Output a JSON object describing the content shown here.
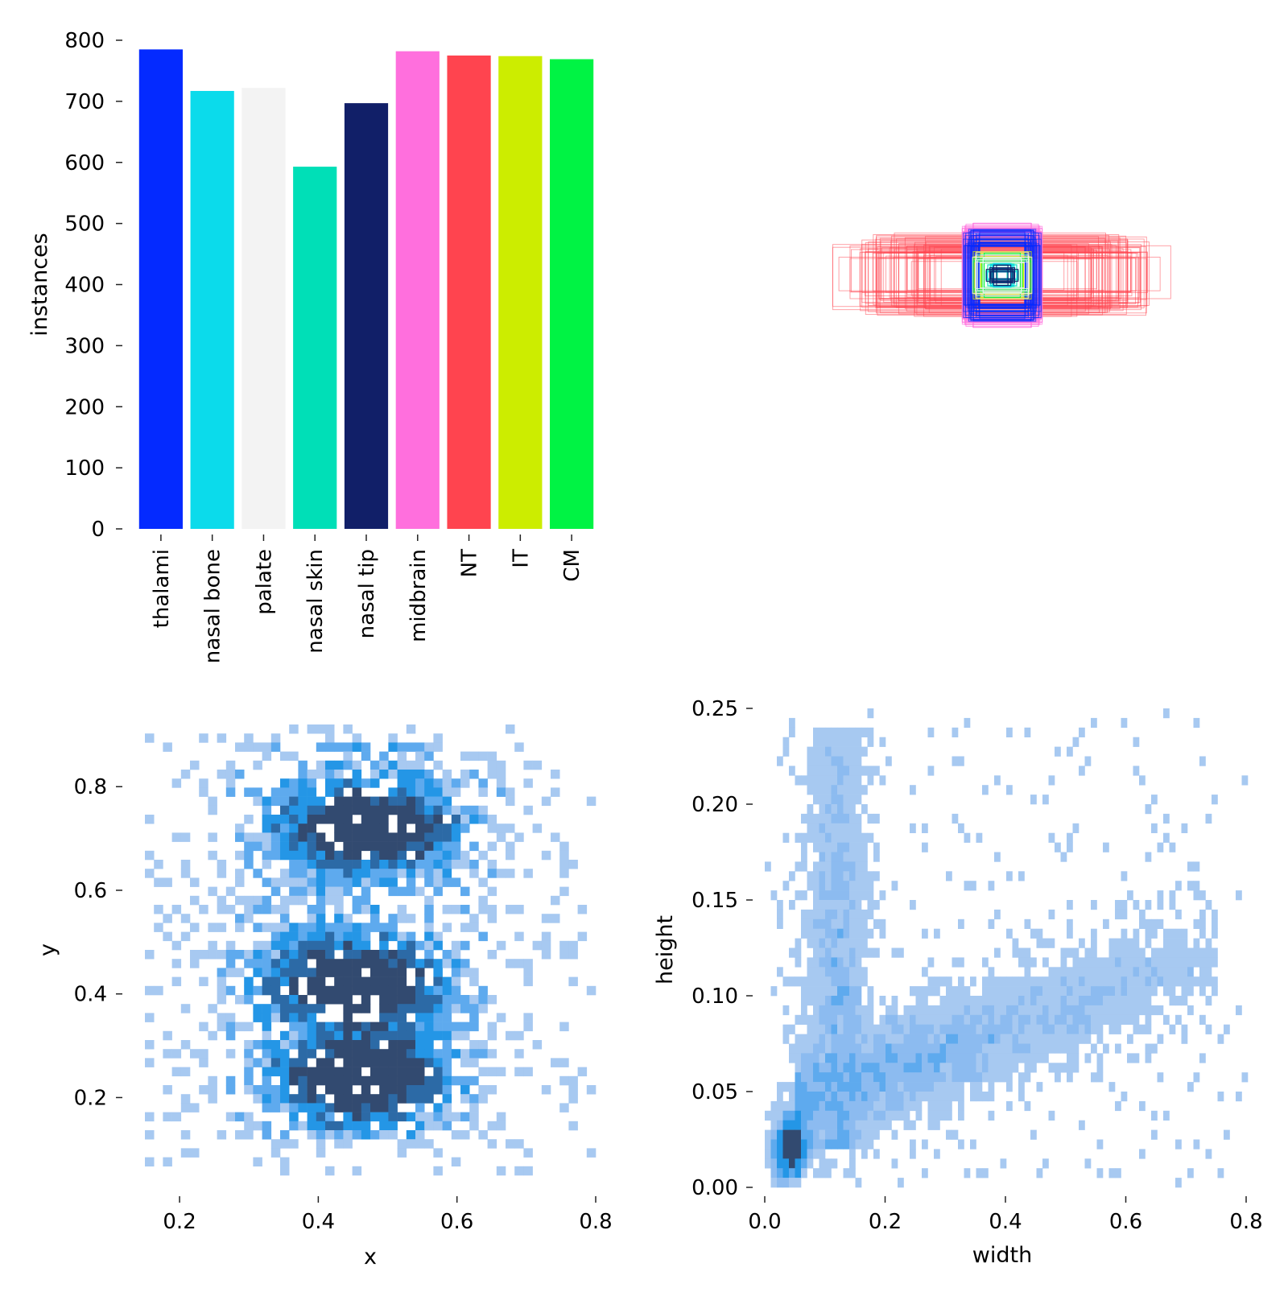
{
  "chart_data": [
    {
      "type": "bar",
      "panel": "top-left",
      "ylabel": "instances",
      "xlabel": "",
      "ylim": [
        0,
        800
      ],
      "yticks": [
        0,
        100,
        200,
        300,
        400,
        500,
        600,
        700,
        800
      ],
      "ytick_labels": [
        "0",
        "100",
        "200",
        "300",
        "400",
        "500",
        "600",
        "700",
        "800"
      ],
      "categories": [
        "thalami",
        "nasal bone",
        "palate",
        "nasal skin",
        "nasal tip",
        "midbrain",
        "NT",
        "IT",
        "CM"
      ],
      "values": [
        785,
        717,
        722,
        593,
        697,
        782,
        775,
        774,
        769
      ],
      "colors": [
        "#042aff",
        "#0bdbeb",
        "#f3f3f3",
        "#00dfb7",
        "#111f68",
        "#ff6fdd",
        "#ff444f",
        "#cced00",
        "#00f344"
      ]
    },
    {
      "type": "boxes",
      "panel": "top-right",
      "description_free": true,
      "classes": [
        "thalami",
        "nasal bone",
        "palate",
        "nasal skin",
        "nasal tip",
        "midbrain",
        "NT",
        "IT",
        "CM"
      ],
      "colors": [
        "#042aff",
        "#0bdbeb",
        "#f3f3f3",
        "#00dfb7",
        "#111f68",
        "#ff6fdd",
        "#ff444f",
        "#cced00",
        "#00f344"
      ]
    },
    {
      "type": "heatmap",
      "panel": "bottom-left",
      "xlabel": "x",
      "ylabel": "y",
      "xlim": [
        0.15,
        0.8
      ],
      "ylim": [
        0.05,
        0.92
      ],
      "xticks": [
        0.2,
        0.4,
        0.6,
        0.8
      ],
      "xtick_labels": [
        "0.2",
        "0.4",
        "0.6",
        "0.8"
      ],
      "yticks": [
        0.2,
        0.4,
        0.6,
        0.8
      ],
      "ytick_labels": [
        "0.2",
        "0.4",
        "0.6",
        "0.8"
      ],
      "density_centers": [
        [
          0.42,
          0.72
        ],
        [
          0.52,
          0.72
        ],
        [
          0.4,
          0.42
        ],
        [
          0.5,
          0.42
        ],
        [
          0.42,
          0.24
        ],
        [
          0.5,
          0.24
        ]
      ],
      "cell_colors": [
        "#a7c9f1",
        "#5eaaee",
        "#2496e6",
        "#2c6aa6",
        "#324a70"
      ]
    },
    {
      "type": "heatmap",
      "panel": "bottom-right",
      "xlabel": "width",
      "ylabel": "height",
      "xlim": [
        0.0,
        0.8
      ],
      "ylim": [
        0.0,
        0.25
      ],
      "xticks": [
        0.0,
        0.2,
        0.4,
        0.6,
        0.8
      ],
      "xtick_labels": [
        "0.0",
        "0.2",
        "0.4",
        "0.6",
        "0.8"
      ],
      "yticks": [
        0.0,
        0.05,
        0.1,
        0.15,
        0.2,
        0.25
      ],
      "ytick_labels": [
        "0.00",
        "0.05",
        "0.10",
        "0.15",
        "0.20",
        "0.25"
      ],
      "cell_colors": [
        "#a7c9f1",
        "#8cbbf0",
        "#5eaaee",
        "#2496e6",
        "#324a70"
      ]
    }
  ]
}
